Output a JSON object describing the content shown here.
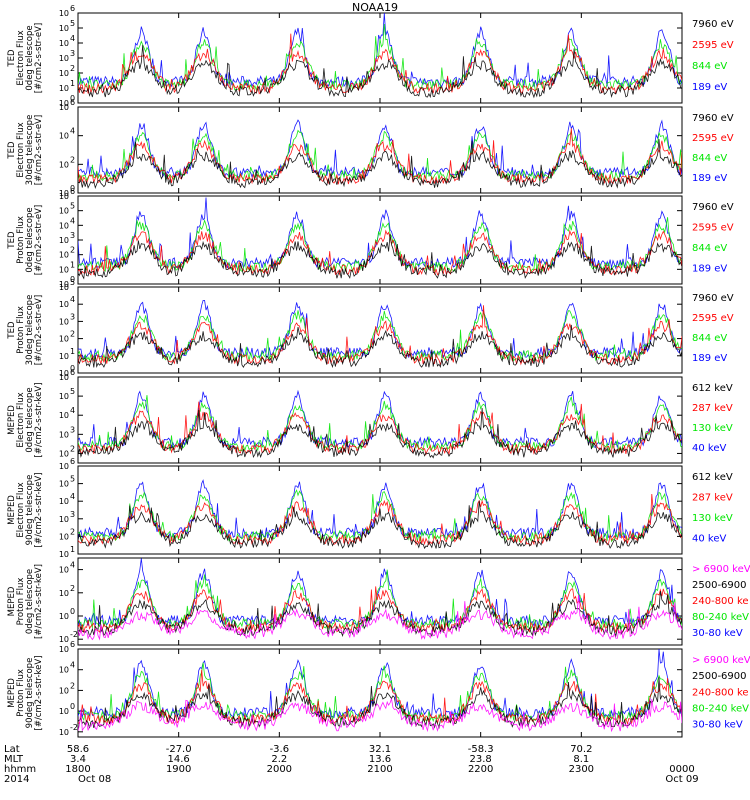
{
  "header": {
    "title": "NOAA19"
  },
  "colors": {
    "blue": "#0000ff",
    "red": "#ff0000",
    "green": "#00e600",
    "black": "#000000",
    "magenta": "#ff00ff"
  },
  "chart_data": [
    {
      "type": "line",
      "panel": 1,
      "ylabel": [
        "TED",
        "Electron Flux",
        "0deg telescope",
        "[#/cm2-s-str-eV]"
      ],
      "ytick_labels": [
        "10",
        "10",
        "10",
        "10",
        "10",
        "10",
        "10"
      ],
      "ytick_exps": [
        "0",
        "1",
        "2",
        "3",
        "4",
        "5",
        "6"
      ],
      "y_log_range": [
        0,
        6
      ],
      "legend": [
        {
          "label": "7960 eV",
          "color": "#000000"
        },
        {
          "label": "2595 eV",
          "color": "#ff0000"
        },
        {
          "label": "844 eV",
          "color": "#00e600"
        },
        {
          "label": "189 eV",
          "color": "#0000ff"
        }
      ]
    },
    {
      "type": "line",
      "panel": 2,
      "ylabel": [
        "TED",
        "Electron Flux",
        "30deg telescope",
        "[#/cm2-s-str-eV]"
      ],
      "ytick_labels": [
        "10",
        "10",
        "10",
        "10"
      ],
      "ytick_exps": [
        "0",
        "2",
        "4",
        "6"
      ],
      "y_log_range": [
        0,
        6
      ],
      "legend": [
        {
          "label": "7960 eV",
          "color": "#000000"
        },
        {
          "label": "2595 eV",
          "color": "#ff0000"
        },
        {
          "label": "844 eV",
          "color": "#00e600"
        },
        {
          "label": "189 eV",
          "color": "#0000ff"
        }
      ]
    },
    {
      "type": "line",
      "panel": 3,
      "ylabel": [
        "TED",
        "Proton Flux",
        "0deg telescope",
        "[#/cm2-s-str-eV]"
      ],
      "ytick_labels": [
        "10",
        "10",
        "10",
        "10",
        "10",
        "10",
        "10"
      ],
      "ytick_exps": [
        "0",
        "1",
        "2",
        "3",
        "4",
        "5",
        "6"
      ],
      "y_log_range": [
        0,
        6
      ],
      "legend": [
        {
          "label": "7960 eV",
          "color": "#000000"
        },
        {
          "label": "2595 eV",
          "color": "#ff0000"
        },
        {
          "label": "844 eV",
          "color": "#00e600"
        },
        {
          "label": "189 eV",
          "color": "#0000ff"
        }
      ]
    },
    {
      "type": "line",
      "panel": 4,
      "ylabel": [
        "TED",
        "Proton Flux",
        "30deg telescope",
        "[#/cm2-s-str-eV]"
      ],
      "ytick_labels": [
        "10",
        "10",
        "10",
        "10",
        "10",
        "10"
      ],
      "ytick_exps": [
        "0",
        "1",
        "2",
        "3",
        "4",
        "5"
      ],
      "y_log_range": [
        0,
        5
      ],
      "legend": [
        {
          "label": "7960 eV",
          "color": "#000000"
        },
        {
          "label": "2595 eV",
          "color": "#ff0000"
        },
        {
          "label": "844 eV",
          "color": "#00e600"
        },
        {
          "label": "189 eV",
          "color": "#0000ff"
        }
      ]
    },
    {
      "type": "line",
      "panel": 5,
      "ylabel": [
        "MEPED",
        "Electron Flux",
        "0deg telescope",
        "[#/cm2-s-str-keV]"
      ],
      "ytick_labels": [
        "10",
        "10",
        "10",
        "10",
        "10"
      ],
      "ytick_exps": [
        "2",
        "3",
        "4",
        "5",
        "6"
      ],
      "y_log_range": [
        1.5,
        6
      ],
      "legend": [
        {
          "label": "612 keV",
          "color": "#000000"
        },
        {
          "label": "287 keV",
          "color": "#ff0000"
        },
        {
          "label": "130 keV",
          "color": "#00e600"
        },
        {
          "label": "40 keV",
          "color": "#0000ff"
        }
      ]
    },
    {
      "type": "line",
      "panel": 6,
      "ylabel": [
        "MEPED",
        "Electron Flux",
        "90deg telescope",
        "[#/cm2-s-str-keV]"
      ],
      "ytick_labels": [
        "10",
        "10",
        "10",
        "10",
        "10",
        "10"
      ],
      "ytick_exps": [
        "1",
        "2",
        "3",
        "4",
        "5",
        "6"
      ],
      "y_log_range": [
        1,
        6
      ],
      "legend": [
        {
          "label": "612 keV",
          "color": "#000000"
        },
        {
          "label": "287 keV",
          "color": "#ff0000"
        },
        {
          "label": "130 keV",
          "color": "#00e600"
        },
        {
          "label": "40 keV",
          "color": "#0000ff"
        }
      ]
    },
    {
      "type": "line",
      "panel": 7,
      "ylabel": [
        "MEPED",
        "Proton Flux",
        "0deg telescope",
        "[#/cm2-s-str-keV]"
      ],
      "ytick_labels": [
        "10",
        "10",
        "10",
        "10"
      ],
      "ytick_exps": [
        "-2",
        "0",
        "2",
        "4"
      ],
      "y_log_range": [
        -2.5,
        5
      ],
      "legend": [
        {
          "label": "> 6900 keV",
          "color": "#ff00ff"
        },
        {
          "label": "2500-6900",
          "color": "#000000"
        },
        {
          "label": "240-800 ke",
          "color": "#ff0000"
        },
        {
          "label": "80-240 keV",
          "color": "#00e600"
        },
        {
          "label": "30-80 keV",
          "color": "#0000ff"
        }
      ]
    },
    {
      "type": "line",
      "panel": 8,
      "ylabel": [
        "MEPED",
        "Proton Flux",
        "90deg telescope",
        "[#/cm2-s-str-keV]"
      ],
      "ytick_labels": [
        "10",
        "10",
        "10",
        "10",
        "10"
      ],
      "ytick_exps": [
        "-2",
        "0",
        "2",
        "4",
        "6"
      ],
      "y_log_range": [
        -2.5,
        6
      ],
      "legend": [
        {
          "label": "> 6900 keV",
          "color": "#ff00ff"
        },
        {
          "label": "2500-6900",
          "color": "#000000"
        },
        {
          "label": "240-800 ke",
          "color": "#ff0000"
        },
        {
          "label": "80-240 keV",
          "color": "#00e600"
        },
        {
          "label": "30-80 keV",
          "color": "#0000ff"
        }
      ]
    }
  ],
  "footer": {
    "row_labels": [
      "Lat",
      "MLT",
      "hhmm",
      "2014"
    ],
    "columns": [
      {
        "lat": "58.6",
        "mlt": "3.4",
        "hhmm": "1800",
        "date": "Oct 08"
      },
      {
        "lat": "-27.0",
        "mlt": "14.6",
        "hhmm": "1900",
        "date": ""
      },
      {
        "lat": "-3.6",
        "mlt": "2.2",
        "hhmm": "2000",
        "date": ""
      },
      {
        "lat": "32.1",
        "mlt": "13.6",
        "hhmm": "2100",
        "date": ""
      },
      {
        "lat": "-58.3",
        "mlt": "23.8",
        "hhmm": "2200",
        "date": ""
      },
      {
        "lat": "70.2",
        "mlt": "8.1",
        "hhmm": "2300",
        "date": ""
      },
      {
        "lat": "",
        "mlt": "",
        "hhmm": "0000",
        "date": "Oct 09"
      }
    ]
  }
}
